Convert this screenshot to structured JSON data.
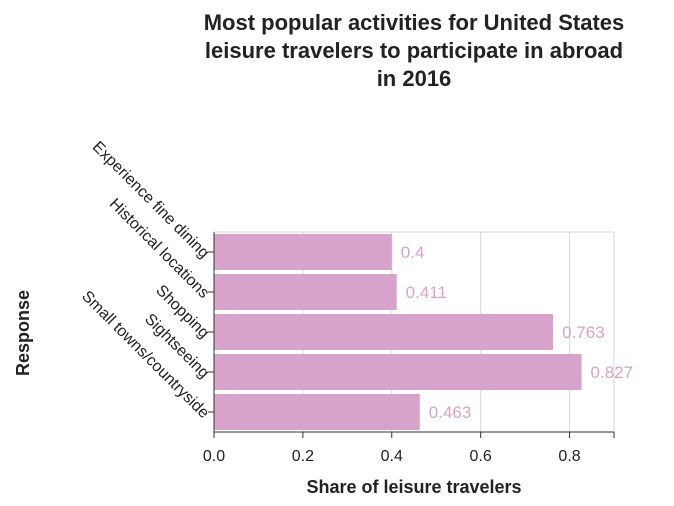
{
  "chart_data": {
    "type": "bar",
    "orientation": "horizontal",
    "title": "Most popular activities for United States leisure travelers to participate in abroad in 2016",
    "title_lines": [
      "Most popular activities for United States",
      "leisure travelers to participate in abroad",
      "in 2016"
    ],
    "xlabel": "Share of leisure travelers",
    "ylabel": "Response",
    "categories": [
      "Experience fine dining",
      "Historical locations",
      "Shopping",
      "Sightseeing",
      "Small towns/countryside"
    ],
    "values": [
      0.4,
      0.411,
      0.763,
      0.827,
      0.463
    ],
    "xlim": [
      0,
      0.9
    ],
    "xticks": [
      0.0,
      0.2,
      0.4,
      0.6,
      0.8
    ],
    "xtick_labels": [
      "0.0",
      "0.2",
      "0.4",
      "0.6",
      "0.8"
    ],
    "grid": true,
    "bar_color": "#d8a3ca",
    "label_color": "#d8a3ca"
  }
}
